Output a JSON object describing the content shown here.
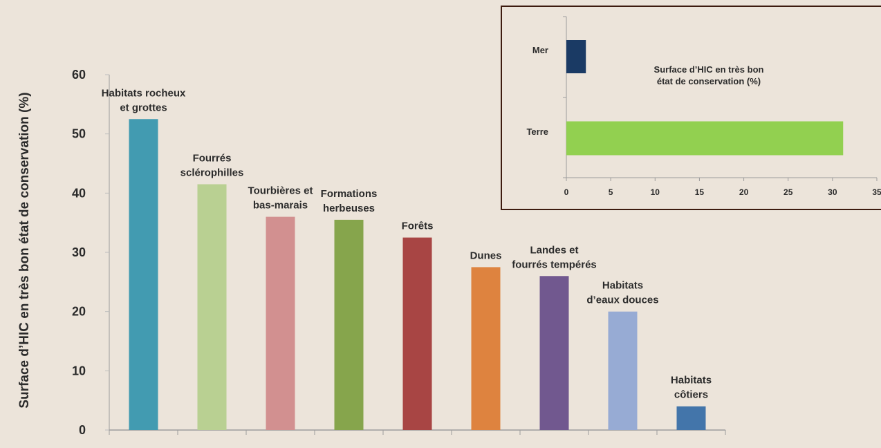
{
  "chart_data": [
    {
      "type": "bar",
      "ylabel": "Surface d’HIC en très bon état de conservation (%)",
      "ylim": [
        0,
        60
      ],
      "yticks": [
        0,
        10,
        20,
        30,
        40,
        50,
        60
      ],
      "categories": [
        [
          "Habitats rocheux",
          "et grottes"
        ],
        [
          "Fourrés",
          "sclérophilles"
        ],
        [
          "Tourbières et",
          "bas-marais"
        ],
        [
          "Formations",
          "herbeuses"
        ],
        [
          "Forêts"
        ],
        [
          "Dunes"
        ],
        [
          "Landes et",
          "fourrés tempérés"
        ],
        [
          "Habitats",
          "d’eaux douces"
        ],
        [
          "Habitats",
          "côtiers"
        ]
      ],
      "values": [
        52.5,
        41.5,
        36,
        35.5,
        32.5,
        27.5,
        26,
        20,
        4
      ],
      "colors": [
        "#429bb1",
        "#b9d092",
        "#d29090",
        "#86a54c",
        "#a84544",
        "#de833f",
        "#71588f",
        "#97abd4",
        "#4375aa"
      ]
    },
    {
      "type": "bar",
      "orientation": "horizontal",
      "title": [
        "Surface d’HIC en très bon",
        "état de conservation (%)"
      ],
      "categories": [
        "Mer",
        "Terre"
      ],
      "values": [
        2.2,
        31.2
      ],
      "colors": [
        "#1a3a64",
        "#92d050"
      ],
      "xlim": [
        0,
        35
      ],
      "xticks": [
        0,
        5,
        10,
        15,
        20,
        25,
        30,
        35
      ]
    }
  ]
}
